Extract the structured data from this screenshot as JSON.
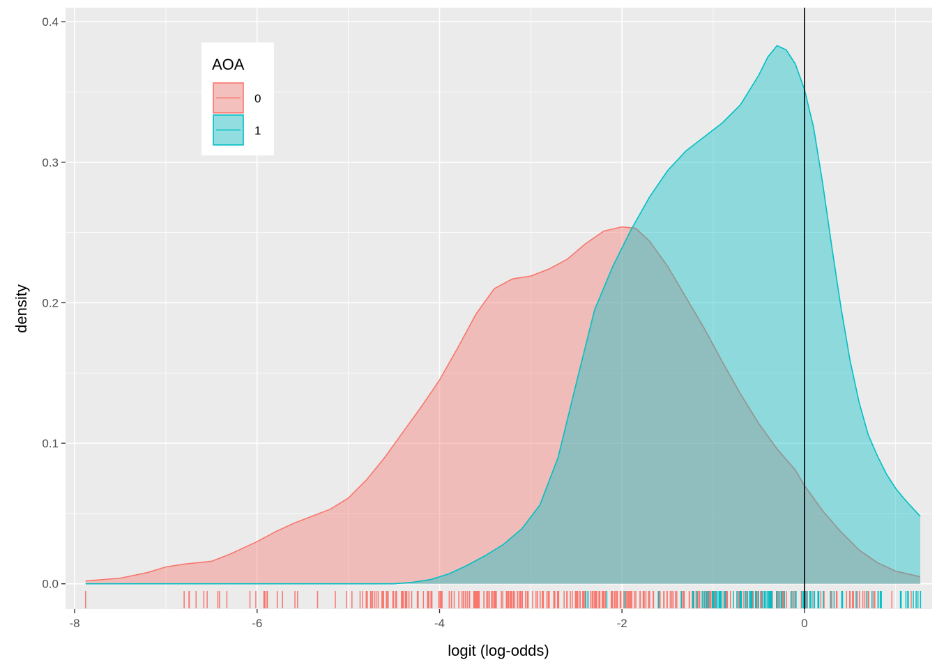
{
  "chart_data": {
    "type": "area",
    "xlabel": "logit (log-odds)",
    "ylabel": "density",
    "xlim": [
      -8.1,
      1.4
    ],
    "ylim": [
      -0.018,
      0.41
    ],
    "x_ticks": [
      -8,
      -6,
      -4,
      -2,
      0
    ],
    "x_tick_labels": [
      "-8",
      "-6",
      "-4",
      "-2",
      "0"
    ],
    "y_ticks": [
      0.0,
      0.1,
      0.2,
      0.3,
      0.4
    ],
    "y_tick_labels": [
      "0.0",
      "0.1",
      "0.2",
      "0.3",
      "0.4"
    ],
    "grid": true,
    "vline_x": 0,
    "legend": {
      "title": "AOA",
      "position": "top-left"
    },
    "series": [
      {
        "name": "0",
        "color": "#F8766D",
        "fill": "#F8766D",
        "x": [
          -7.88,
          -7.5,
          -7.2,
          -7.0,
          -6.8,
          -6.5,
          -6.3,
          -6.0,
          -5.8,
          -5.6,
          -5.4,
          -5.2,
          -5.0,
          -4.8,
          -4.6,
          -4.4,
          -4.2,
          -4.0,
          -3.8,
          -3.6,
          -3.4,
          -3.2,
          -3.0,
          -2.8,
          -2.6,
          -2.4,
          -2.2,
          -2.0,
          -1.85,
          -1.7,
          -1.5,
          -1.3,
          -1.1,
          -0.9,
          -0.7,
          -0.5,
          -0.3,
          -0.1,
          0.0,
          0.2,
          0.4,
          0.6,
          0.8,
          1.0,
          1.27
        ],
        "y": [
          0.002,
          0.004,
          0.008,
          0.012,
          0.014,
          0.016,
          0.021,
          0.03,
          0.037,
          0.043,
          0.048,
          0.053,
          0.061,
          0.074,
          0.09,
          0.108,
          0.126,
          0.145,
          0.168,
          0.192,
          0.21,
          0.217,
          0.219,
          0.224,
          0.231,
          0.242,
          0.251,
          0.254,
          0.253,
          0.244,
          0.226,
          0.204,
          0.182,
          0.158,
          0.135,
          0.114,
          0.096,
          0.081,
          0.07,
          0.052,
          0.037,
          0.024,
          0.015,
          0.009,
          0.005
        ]
      },
      {
        "name": "1",
        "color": "#00BFC4",
        "fill": "#00BFC4",
        "x": [
          -7.88,
          -6.0,
          -4.5,
          -4.3,
          -4.1,
          -3.9,
          -3.7,
          -3.5,
          -3.3,
          -3.1,
          -2.9,
          -2.7,
          -2.5,
          -2.3,
          -2.1,
          -1.9,
          -1.7,
          -1.5,
          -1.3,
          -1.1,
          -0.9,
          -0.7,
          -0.5,
          -0.4,
          -0.3,
          -0.2,
          -0.1,
          0.0,
          0.1,
          0.2,
          0.3,
          0.4,
          0.5,
          0.6,
          0.7,
          0.8,
          0.9,
          1.0,
          1.1,
          1.27
        ],
        "y": [
          0.0,
          0.0,
          0.0,
          0.001,
          0.003,
          0.007,
          0.013,
          0.02,
          0.028,
          0.039,
          0.056,
          0.09,
          0.143,
          0.195,
          0.226,
          0.252,
          0.275,
          0.294,
          0.308,
          0.318,
          0.328,
          0.341,
          0.362,
          0.375,
          0.383,
          0.38,
          0.37,
          0.352,
          0.325,
          0.285,
          0.24,
          0.197,
          0.159,
          0.129,
          0.106,
          0.091,
          0.078,
          0.068,
          0.06,
          0.048
        ]
      }
    ]
  }
}
